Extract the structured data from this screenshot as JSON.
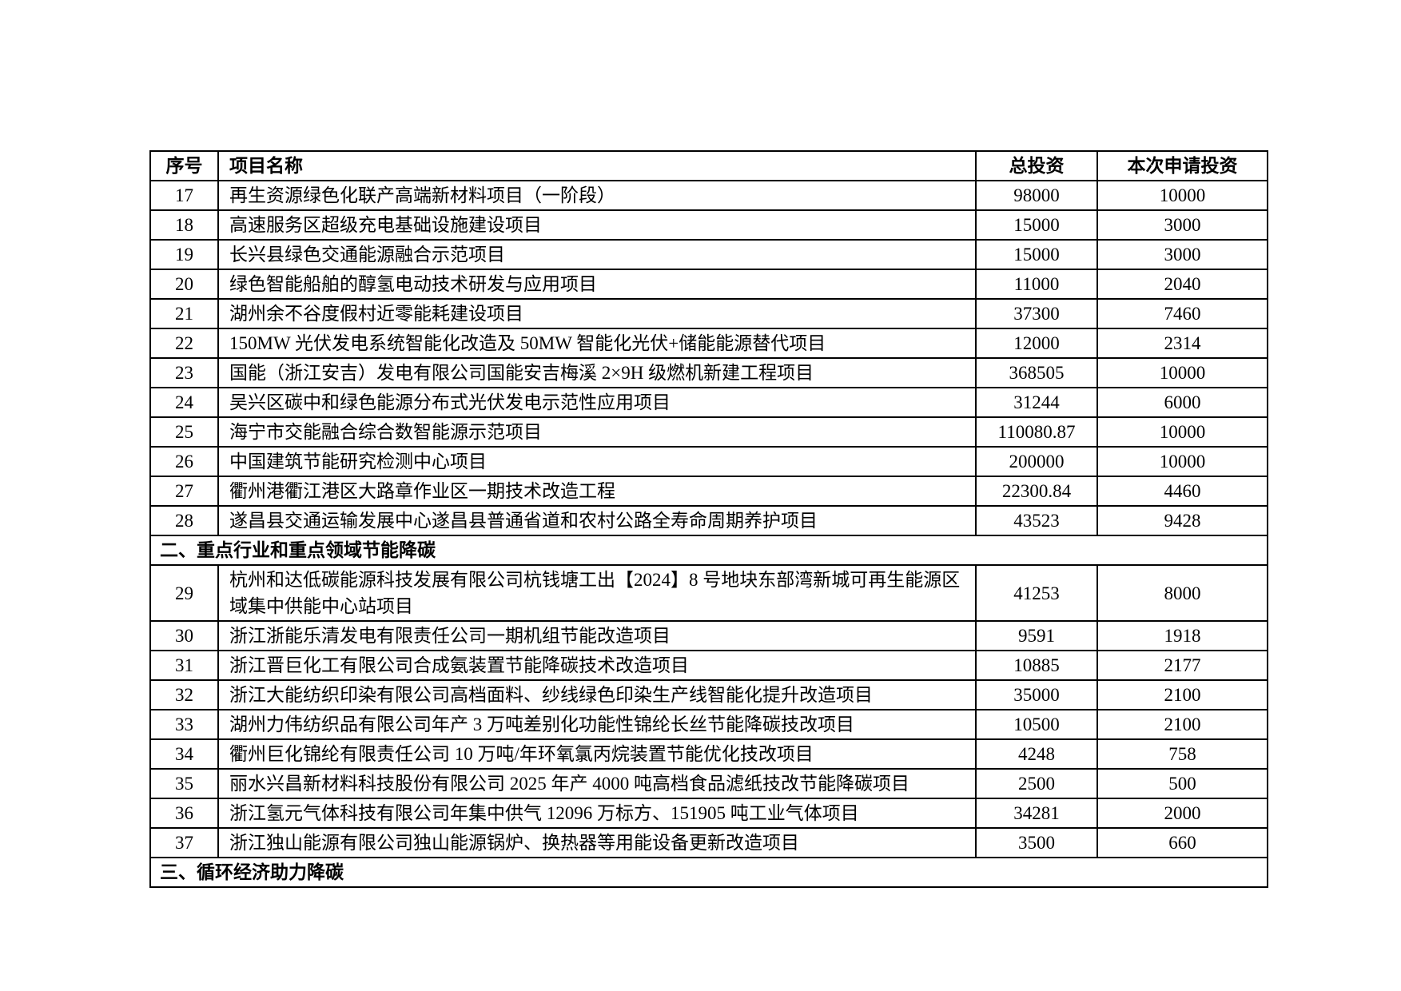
{
  "table": {
    "columns": [
      {
        "key": "no",
        "label": "序号"
      },
      {
        "key": "name",
        "label": "项目名称"
      },
      {
        "key": "total",
        "label": "总投资"
      },
      {
        "key": "applied",
        "label": "本次申请投资"
      }
    ],
    "body": [
      {
        "type": "row",
        "no": "17",
        "name": "再生资源绿色化联产高端新材料项目（一阶段）",
        "total": "98000",
        "applied": "10000"
      },
      {
        "type": "row",
        "no": "18",
        "name": "高速服务区超级充电基础设施建设项目",
        "total": "15000",
        "applied": "3000"
      },
      {
        "type": "row",
        "no": "19",
        "name": "长兴县绿色交通能源融合示范项目",
        "total": "15000",
        "applied": "3000"
      },
      {
        "type": "row",
        "no": "20",
        "name": "绿色智能船舶的醇氢电动技术研发与应用项目",
        "total": "11000",
        "applied": "2040"
      },
      {
        "type": "row",
        "no": "21",
        "name": "湖州余不谷度假村近零能耗建设项目",
        "total": "37300",
        "applied": "7460"
      },
      {
        "type": "row",
        "no": "22",
        "name": "150MW 光伏发电系统智能化改造及 50MW 智能化光伏+储能能源替代项目",
        "total": "12000",
        "applied": "2314"
      },
      {
        "type": "row",
        "no": "23",
        "name": "国能（浙江安吉）发电有限公司国能安吉梅溪 2×9H 级燃机新建工程项目",
        "total": "368505",
        "applied": "10000"
      },
      {
        "type": "row",
        "no": "24",
        "name": "吴兴区碳中和绿色能源分布式光伏发电示范性应用项目",
        "total": "31244",
        "applied": "6000"
      },
      {
        "type": "row",
        "no": "25",
        "name": "海宁市交能融合综合数智能源示范项目",
        "total": "110080.87",
        "applied": "10000"
      },
      {
        "type": "row",
        "no": "26",
        "name": "中国建筑节能研究检测中心项目",
        "total": "200000",
        "applied": "10000"
      },
      {
        "type": "row",
        "no": "27",
        "name": "衢州港衢江港区大路章作业区一期技术改造工程",
        "total": "22300.84",
        "applied": "4460"
      },
      {
        "type": "row",
        "no": "28",
        "name": "遂昌县交通运输发展中心遂昌县普通省道和农村公路全寿命周期养护项目",
        "total": "43523",
        "applied": "9428"
      },
      {
        "type": "section",
        "label": "二、重点行业和重点领域节能降碳"
      },
      {
        "type": "row",
        "no": "29",
        "name": "杭州和达低碳能源科技发展有限公司杭钱塘工出【2024】8 号地块东部湾新城可再生能源区域集中供能中心站项目",
        "total": "41253",
        "applied": "8000"
      },
      {
        "type": "row",
        "no": "30",
        "name": "浙江浙能乐清发电有限责任公司一期机组节能改造项目",
        "total": "9591",
        "applied": "1918"
      },
      {
        "type": "row",
        "no": "31",
        "name": "浙江晋巨化工有限公司合成氨装置节能降碳技术改造项目",
        "total": "10885",
        "applied": "2177"
      },
      {
        "type": "row",
        "no": "32",
        "name": "浙江大能纺织印染有限公司高档面料、纱线绿色印染生产线智能化提升改造项目",
        "total": "35000",
        "applied": "2100"
      },
      {
        "type": "row",
        "no": "33",
        "name": "湖州力伟纺织品有限公司年产 3 万吨差别化功能性锦纶长丝节能降碳技改项目",
        "total": "10500",
        "applied": "2100"
      },
      {
        "type": "row",
        "no": "34",
        "name": "衢州巨化锦纶有限责任公司 10 万吨/年环氧氯丙烷装置节能优化技改项目",
        "total": "4248",
        "applied": "758"
      },
      {
        "type": "row",
        "no": "35",
        "name": "丽水兴昌新材料科技股份有限公司 2025 年产 4000 吨高档食品滤纸技改节能降碳项目",
        "total": "2500",
        "applied": "500"
      },
      {
        "type": "row",
        "no": "36",
        "name": "浙江氢元气体科技有限公司年集中供气 12096 万标方、151905 吨工业气体项目",
        "total": "34281",
        "applied": "2000"
      },
      {
        "type": "row",
        "no": "37",
        "name": "浙江独山能源有限公司独山能源锅炉、换热器等用能设备更新改造项目",
        "total": "3500",
        "applied": "660"
      },
      {
        "type": "section",
        "label": "三、循环经济助力降碳"
      }
    ]
  }
}
